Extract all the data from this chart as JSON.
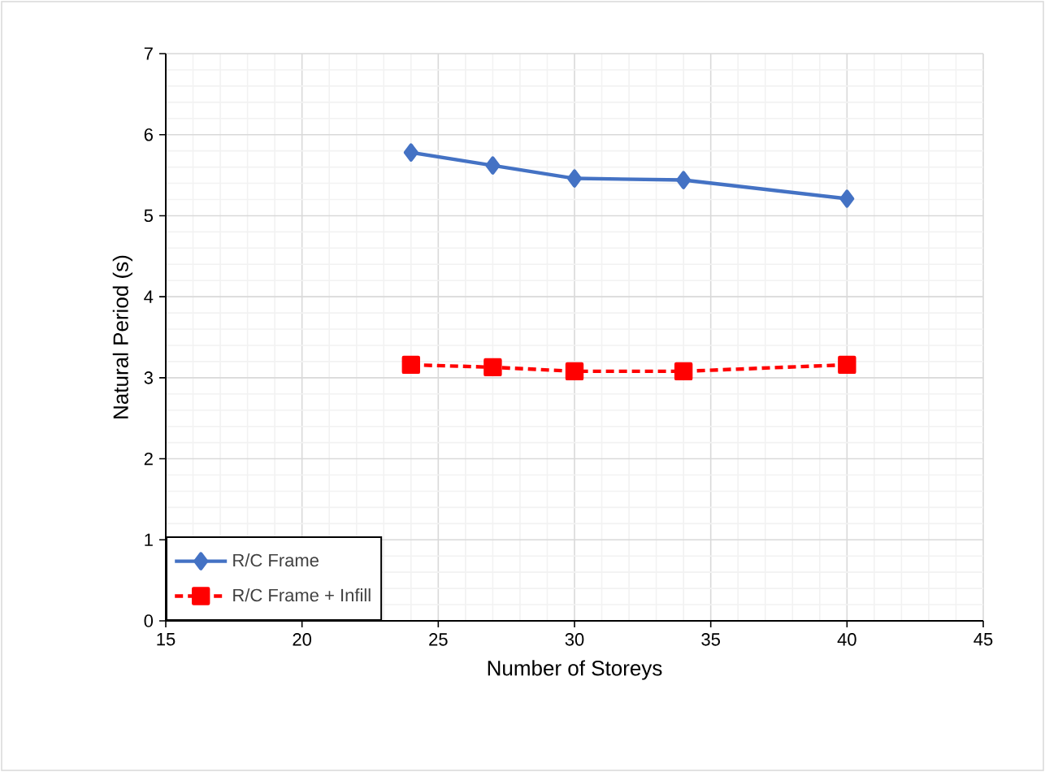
{
  "chart_data": {
    "type": "line",
    "xlabel": "Number of Storeys",
    "ylabel": "Natural Period (s)",
    "x": [
      24,
      27,
      30,
      34,
      40
    ],
    "series": [
      {
        "name": "R/C Frame",
        "color": "#4472c4",
        "marker": "diamond",
        "line_style": "solid",
        "values": [
          5.78,
          5.62,
          5.46,
          5.44,
          5.21
        ]
      },
      {
        "name": "R/C Frame + Infill",
        "color": "#ff0000",
        "marker": "square",
        "line_style": "dashed",
        "values": [
          3.16,
          3.13,
          3.08,
          3.08,
          3.16
        ]
      }
    ],
    "xlim": [
      15,
      45
    ],
    "xticks": [
      15,
      20,
      25,
      30,
      35,
      40,
      45
    ],
    "ylim": [
      0,
      7
    ],
    "yticks": [
      0,
      1,
      2,
      3,
      4,
      5,
      6,
      7
    ],
    "grid": true,
    "legend": "bottom left"
  }
}
